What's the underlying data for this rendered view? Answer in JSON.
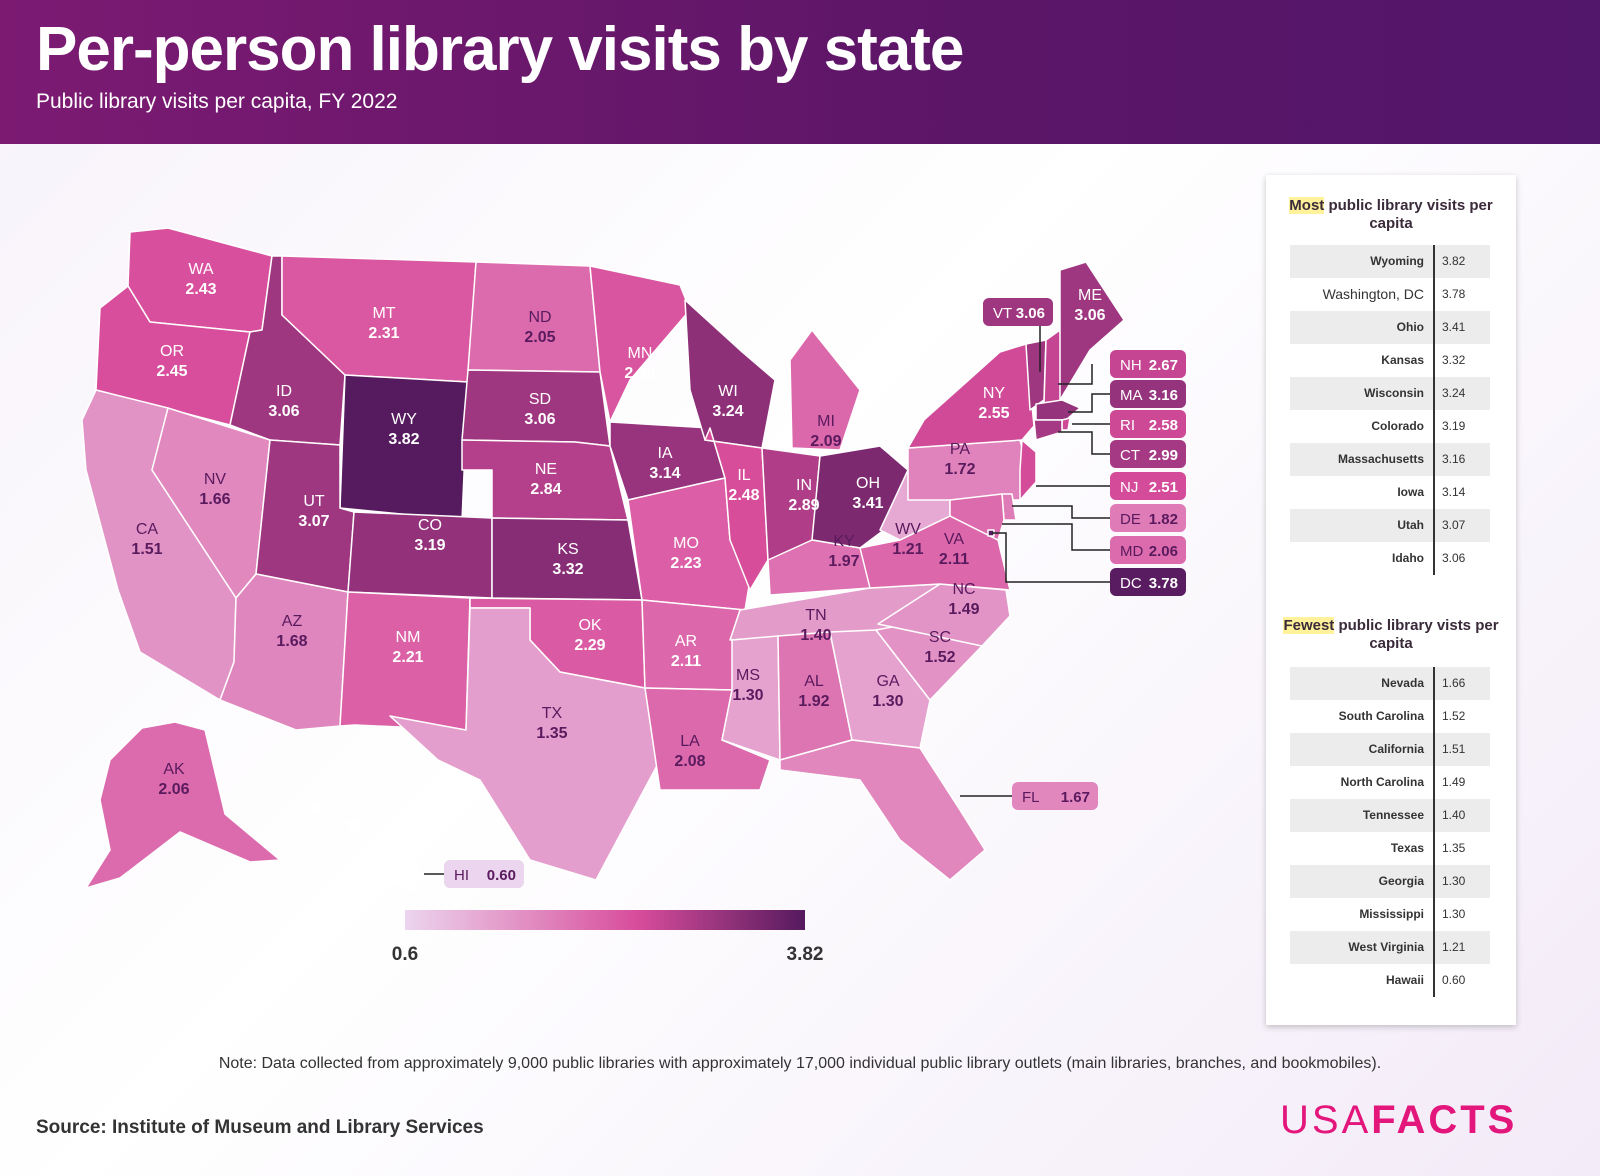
{
  "header": {
    "title": "Per-person library visits by state",
    "subtitle": "Public library visits per capita, FY 2022"
  },
  "colors": {
    "low": "#ecd5ee",
    "mid": "#d84d9b",
    "high": "#561a5e",
    "header_start": "#7c1a72",
    "header_end": "#52166a",
    "highlight": "#fff29a",
    "logo": "#e3167c"
  },
  "legend": {
    "min": 0.6,
    "max": 3.82,
    "min_label": "0.6",
    "max_label": "3.82"
  },
  "map_data": {
    "value_label": "Visits per capita",
    "states": [
      {
        "abbr": "WA",
        "value": 2.43
      },
      {
        "abbr": "OR",
        "value": 2.45
      },
      {
        "abbr": "CA",
        "value": 1.51
      },
      {
        "abbr": "NV",
        "value": 1.66
      },
      {
        "abbr": "ID",
        "value": 3.06
      },
      {
        "abbr": "MT",
        "value": 2.31
      },
      {
        "abbr": "WY",
        "value": 3.82
      },
      {
        "abbr": "UT",
        "value": 3.07
      },
      {
        "abbr": "AZ",
        "value": 1.68
      },
      {
        "abbr": "CO",
        "value": 3.19
      },
      {
        "abbr": "NM",
        "value": 2.21
      },
      {
        "abbr": "ND",
        "value": 2.05
      },
      {
        "abbr": "SD",
        "value": 3.06
      },
      {
        "abbr": "NE",
        "value": 2.84
      },
      {
        "abbr": "KS",
        "value": 3.32
      },
      {
        "abbr": "OK",
        "value": 2.29
      },
      {
        "abbr": "TX",
        "value": 1.35
      },
      {
        "abbr": "MN",
        "value": 2.36
      },
      {
        "abbr": "IA",
        "value": 3.14
      },
      {
        "abbr": "MO",
        "value": 2.23
      },
      {
        "abbr": "AR",
        "value": 2.11
      },
      {
        "abbr": "LA",
        "value": 2.08
      },
      {
        "abbr": "WI",
        "value": 3.24
      },
      {
        "abbr": "IL",
        "value": 2.48
      },
      {
        "abbr": "MI",
        "value": 2.09
      },
      {
        "abbr": "IN",
        "value": 2.89
      },
      {
        "abbr": "OH",
        "value": 3.41
      },
      {
        "abbr": "KY",
        "value": 1.97
      },
      {
        "abbr": "TN",
        "value": 1.4
      },
      {
        "abbr": "MS",
        "value": 1.3
      },
      {
        "abbr": "AL",
        "value": 1.92
      },
      {
        "abbr": "GA",
        "value": 1.3
      },
      {
        "abbr": "FL",
        "value": 1.67
      },
      {
        "abbr": "SC",
        "value": 1.52
      },
      {
        "abbr": "NC",
        "value": 1.49
      },
      {
        "abbr": "VA",
        "value": 2.11
      },
      {
        "abbr": "WV",
        "value": 1.21
      },
      {
        "abbr": "PA",
        "value": 1.72
      },
      {
        "abbr": "NY",
        "value": 2.55
      },
      {
        "abbr": "VT",
        "value": 3.06
      },
      {
        "abbr": "NH",
        "value": 2.67
      },
      {
        "abbr": "ME",
        "value": 3.06
      },
      {
        "abbr": "MA",
        "value": 3.16
      },
      {
        "abbr": "RI",
        "value": 2.58
      },
      {
        "abbr": "CT",
        "value": 2.99
      },
      {
        "abbr": "NJ",
        "value": 2.51
      },
      {
        "abbr": "DE",
        "value": 1.82
      },
      {
        "abbr": "MD",
        "value": 2.06
      },
      {
        "abbr": "DC",
        "value": 3.78
      },
      {
        "abbr": "AK",
        "value": 2.06
      },
      {
        "abbr": "HI",
        "value": 0.6
      }
    ]
  },
  "most": {
    "heading_highlight": "Most",
    "heading_rest": " public library visits per capita",
    "rows": [
      {
        "name": "Wyoming",
        "value": "3.82"
      },
      {
        "name": "Washington, DC",
        "value": "3.78"
      },
      {
        "name": "Ohio",
        "value": "3.41"
      },
      {
        "name": "Kansas",
        "value": "3.32"
      },
      {
        "name": "Wisconsin",
        "value": "3.24"
      },
      {
        "name": "Colorado",
        "value": "3.19"
      },
      {
        "name": "Massachusetts",
        "value": "3.16"
      },
      {
        "name": "Iowa",
        "value": "3.14"
      },
      {
        "name": "Utah",
        "value": "3.07"
      },
      {
        "name": "Idaho",
        "value": "3.06"
      }
    ]
  },
  "fewest": {
    "heading_highlight": "Fewest",
    "heading_rest": " public library vists per capita",
    "rows": [
      {
        "name": "Nevada",
        "value": "1.66"
      },
      {
        "name": "South Carolina",
        "value": "1.52"
      },
      {
        "name": "California",
        "value": "1.51"
      },
      {
        "name": "North Carolina",
        "value": "1.49"
      },
      {
        "name": "Tennessee",
        "value": "1.40"
      },
      {
        "name": "Texas",
        "value": "1.35"
      },
      {
        "name": "Georgia",
        "value": "1.30"
      },
      {
        "name": "Mississippi",
        "value": "1.30"
      },
      {
        "name": "West Virginia",
        "value": "1.21"
      },
      {
        "name": "Hawaii",
        "value": "0.60"
      }
    ]
  },
  "note": "Note: Data collected from approximately 9,000 public libraries with approximately 17,000 individual public library outlets (main libraries, branches, and bookmobiles).",
  "source": "Source: Institute of Museum and Library Services",
  "logo": {
    "part1": "USA",
    "part2": "FACTS"
  }
}
